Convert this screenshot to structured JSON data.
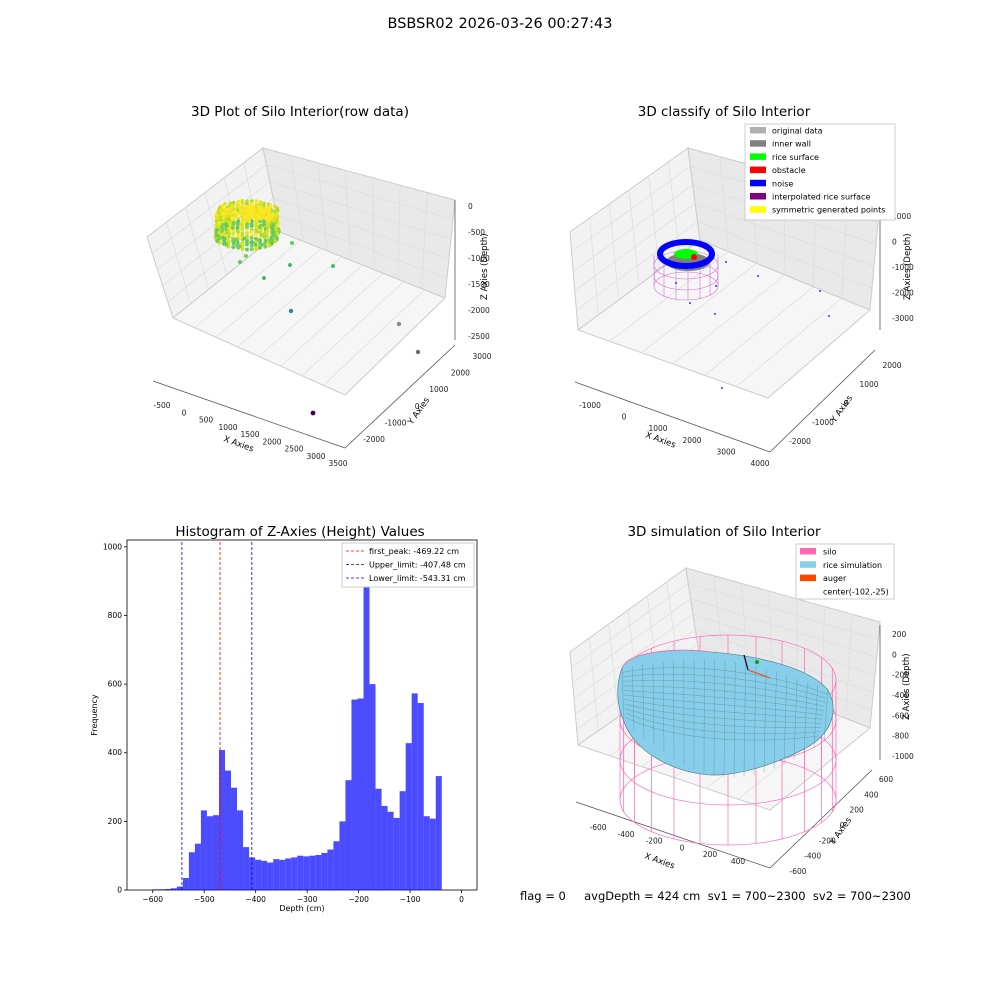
{
  "suptitle": "BSBSR02 2026-03-26 00:27:43",
  "status_line": "flag = 0     avgDepth = 424 cm  sv1 = 700~2300  sv2 = 700~2300",
  "colors": {
    "grid": "#cccccc",
    "pane": "#f2f2f2",
    "pane2": "#e9e9e9",
    "hist": "#0000ff",
    "peak": "#ff0000",
    "limit": "#0000ff",
    "silo": "#ff69b4",
    "rice": "#87ceeb",
    "auger": "#ff4500"
  },
  "chart_data": [
    {
      "type": "scatter",
      "subtype": "3d",
      "title": "3D Plot of Silo Interior(row data)",
      "xlabel": "X Axies",
      "ylabel": "Y Axies",
      "zlabel": "Z Axies (Depth)",
      "x_ticks": [
        "-500",
        "0",
        "500",
        "1000",
        "1500",
        "2000",
        "2500",
        "3000",
        "3500"
      ],
      "y_ticks": [
        "-2000",
        "-1000",
        "0",
        "1000",
        "2000",
        "3000"
      ],
      "z_ticks": [
        "0",
        "-500",
        "-1000",
        "-1500",
        "-2000",
        "-2500"
      ],
      "colormap": "viridis"
    },
    {
      "type": "scatter",
      "subtype": "3d",
      "title": "3D classify of Silo Interior",
      "xlabel": "X Axies",
      "ylabel": "Y Axies",
      "zlabel": "Z Axies (Depth)",
      "x_ticks": [
        "-1000",
        "0",
        "1000",
        "2000",
        "3000",
        "4000"
      ],
      "y_ticks": [
        "-2000",
        "-1000",
        "0",
        "1000",
        "2000"
      ],
      "z_ticks": [
        "1000",
        "0",
        "-1000",
        "-2000",
        "-3000"
      ],
      "legend": [
        {
          "label": "original data",
          "color": "#b0b0b0"
        },
        {
          "label": "inner wall",
          "color": "#808080"
        },
        {
          "label": "rice surface",
          "color": "#00ff00"
        },
        {
          "label": "obstacle",
          "color": "#ff0000"
        },
        {
          "label": "noise",
          "color": "#0000ff"
        },
        {
          "label": "interpolated rice surface",
          "color": "#800080"
        },
        {
          "label": "symmetric generated points",
          "color": "#ffff00"
        }
      ],
      "legend_position": "top-right"
    },
    {
      "type": "bar",
      "subtype": "histogram",
      "title": "Histogram of Z-Axies (Height) Values",
      "xlabel": "Depth (cm)",
      "ylabel": "Frequency",
      "xlim": [
        -650,
        30
      ],
      "ylim": [
        0,
        1020
      ],
      "x_ticks": [
        -600,
        -500,
        -400,
        -300,
        -200,
        -100,
        0
      ],
      "y_ticks": [
        0,
        200,
        400,
        600,
        800,
        1000
      ],
      "bin_start": -600,
      "bin_width": 11.7,
      "values": [
        2,
        2,
        3,
        5,
        10,
        35,
        110,
        135,
        232,
        215,
        218,
        408,
        348,
        298,
        232,
        125,
        95,
        88,
        85,
        80,
        90,
        88,
        92,
        95,
        100,
        98,
        100,
        102,
        108,
        118,
        142,
        200,
        320,
        555,
        558,
        955,
        600,
        295,
        245,
        228,
        210,
        288,
        428,
        573,
        545,
        215,
        208,
        332
      ],
      "lines": [
        {
          "label": "first_peak: -469.22 cm",
          "x": -469.22,
          "color": "#ff0000"
        },
        {
          "label": "Upper_limit: -407.48 cm",
          "x": -407.48,
          "color": "#0000ff"
        },
        {
          "label": "Lower_limit: -543.31 cm",
          "x": -543.31,
          "color": "#0000ff"
        }
      ],
      "legend_position": "top-right"
    },
    {
      "type": "area",
      "subtype": "3d-surface",
      "title": "3D simulation of Silo Interior",
      "xlabel": "X Axies",
      "ylabel": "Y Axies",
      "zlabel": "Z Axies (Depth)",
      "x_ticks": [
        "-600",
        "-400",
        "-200",
        "0",
        "200",
        "400"
      ],
      "y_ticks": [
        "-600",
        "-400",
        "-200",
        "0",
        "200",
        "400",
        "600"
      ],
      "z_ticks": [
        "200",
        "0",
        "-200",
        "-400",
        "-600",
        "-800",
        "-1000"
      ],
      "legend": [
        {
          "label": "silo",
          "color": "#ff69b4"
        },
        {
          "label": "rice simulation",
          "color": "#87ceeb"
        },
        {
          "label": "auger",
          "color": "#ff4500"
        },
        {
          "label": "center(-102,-25)",
          "color": ""
        }
      ],
      "legend_position": "top-right"
    }
  ]
}
